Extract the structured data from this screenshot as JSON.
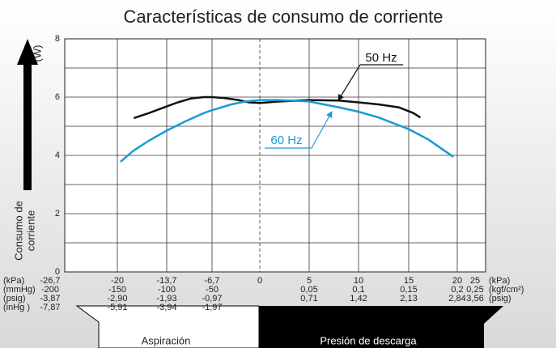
{
  "chart_data": {
    "type": "line",
    "title": "Características de consumo de corriente",
    "y_label_lines": [
      "Consumo de",
      "corriente"
    ],
    "y_unit": "(W)",
    "xlim": [
      -26.7,
      25
    ],
    "xticks": [
      {
        "value": -26.7,
        "label": "-26,7"
      },
      -20,
      {
        "value": -13.7,
        "label": "-13,7"
      },
      {
        "value": -6.7,
        "label": "-6,7"
      },
      0,
      5,
      10,
      15,
      20,
      25
    ],
    "x_unit_left": "(kPa)",
    "x_unit_right": "(kPa)",
    "secondary_scales": [
      {
        "unit_left": "(mmHg)",
        "unit_right": "(kgf/cm²)",
        "labels": [
          "-200",
          "-150",
          "-100",
          "-50",
          null,
          "0,05",
          "0,1",
          "0,15",
          "0,2",
          "0,25"
        ]
      },
      {
        "unit_left": "(psig)",
        "unit_right": "(psig)",
        "labels": [
          "-3,87",
          "-2,90",
          "-1,93",
          "-0,97",
          null,
          "0,71",
          "1,42",
          "2,13",
          "2,84",
          "3,56"
        ]
      },
      {
        "unit_left": "(inHg )",
        "unit_right": null,
        "labels": [
          "-7,87",
          "-5,91",
          "-3,94",
          "-1,97",
          null,
          null,
          null,
          null,
          null,
          null
        ]
      }
    ],
    "ylim": [
      0,
      8
    ],
    "yticks": [
      0,
      2,
      4,
      6,
      8
    ],
    "minor_yticks": [
      1,
      3,
      5,
      7
    ],
    "grid": true,
    "series": [
      {
        "name": "50 Hz",
        "color": "#111111",
        "x": [
          -17.9,
          -16,
          -14,
          -12,
          -10,
          -8,
          -6.7,
          -5,
          -3,
          -1.5,
          0,
          2,
          5,
          8,
          10,
          12,
          14,
          15.5,
          16.2
        ],
        "values": [
          5.28,
          5.45,
          5.65,
          5.82,
          5.95,
          6.0,
          6.0,
          5.97,
          5.9,
          5.82,
          5.8,
          5.85,
          5.9,
          5.88,
          5.82,
          5.75,
          5.65,
          5.45,
          5.3
        ]
      },
      {
        "name": "60 Hz",
        "color": "#1a9ad6",
        "x": [
          -19.6,
          -18,
          -16,
          -13.7,
          -11,
          -8,
          -6.7,
          -4,
          -2,
          0,
          2,
          5,
          8,
          10,
          12,
          15,
          17,
          19.6
        ],
        "values": [
          3.78,
          4.15,
          4.5,
          4.85,
          5.15,
          5.45,
          5.55,
          5.75,
          5.85,
          5.9,
          5.9,
          5.85,
          5.65,
          5.5,
          5.3,
          4.9,
          4.55,
          3.95
        ]
      }
    ],
    "direction_labels": [
      "Aspiración",
      "Presión de descarga"
    ]
  }
}
